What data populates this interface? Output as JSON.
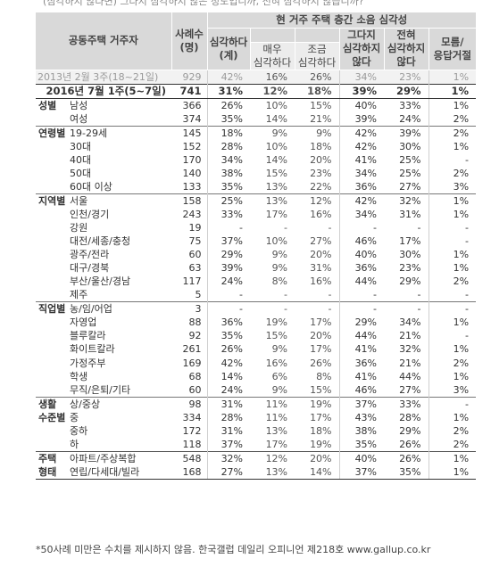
{
  "header_text": "(심각하지 않다면) 그다지 심각하지 않은 정도입니까, 전혀 심각하지 않습니까?",
  "table": {
    "head": {
      "title": "공동주택 거주자",
      "sample": "사례수\n(명)",
      "group": "현 거주 주택 층간 소음 심각성",
      "serious": "심각하다\n(계)",
      "very": "매우\n심각하다",
      "some": "조금\n심각하다",
      "not_much": "그다지\n심각하지\n않다",
      "not_at_all": "전혀\n심각하지\n않다",
      "dk": "모름/\n응답거절"
    },
    "rows": [
      {
        "g": "",
        "l": "2013년 2월 3주(18~21일)",
        "n": "929",
        "v": [
          "42%",
          "16%",
          "26%",
          "34%",
          "23%",
          "1%"
        ],
        "cls": "prev"
      },
      {
        "g": "",
        "l": "2016년 7월 1주(5~7일)",
        "n": "741",
        "v": [
          "31%",
          "12%",
          "18%",
          "39%",
          "29%",
          "1%"
        ],
        "cls": "cur"
      },
      {
        "g": "성별",
        "l": "남성",
        "n": "366",
        "v": [
          "26%",
          "10%",
          "15%",
          "40%",
          "33%",
          "1%"
        ],
        "cls": "gstart"
      },
      {
        "g": "",
        "l": "여성",
        "n": "374",
        "v": [
          "35%",
          "14%",
          "21%",
          "39%",
          "24%",
          "2%"
        ]
      },
      {
        "g": "연령별",
        "l": "19-29세",
        "n": "145",
        "v": [
          "18%",
          "9%",
          "9%",
          "42%",
          "39%",
          "2%"
        ],
        "cls": "gstart2"
      },
      {
        "g": "",
        "l": "30대",
        "n": "152",
        "v": [
          "28%",
          "10%",
          "18%",
          "42%",
          "30%",
          "1%"
        ]
      },
      {
        "g": "",
        "l": "40대",
        "n": "170",
        "v": [
          "34%",
          "14%",
          "20%",
          "41%",
          "25%",
          "-"
        ]
      },
      {
        "g": "",
        "l": "50대",
        "n": "140",
        "v": [
          "38%",
          "15%",
          "23%",
          "34%",
          "25%",
          "2%"
        ]
      },
      {
        "g": "",
        "l": "60대 이상",
        "n": "133",
        "v": [
          "35%",
          "13%",
          "22%",
          "36%",
          "27%",
          "3%"
        ]
      },
      {
        "g": "지역별",
        "l": "서울",
        "n": "158",
        "v": [
          "25%",
          "13%",
          "12%",
          "42%",
          "32%",
          "1%"
        ],
        "cls": "gstart2"
      },
      {
        "g": "",
        "l": "인천/경기",
        "n": "243",
        "v": [
          "33%",
          "17%",
          "16%",
          "34%",
          "31%",
          "1%"
        ]
      },
      {
        "g": "",
        "l": "강원",
        "n": "19",
        "v": [
          "-",
          "-",
          "-",
          "-",
          "-",
          "-"
        ]
      },
      {
        "g": "",
        "l": "대전/세종/충청",
        "n": "75",
        "v": [
          "37%",
          "10%",
          "27%",
          "46%",
          "17%",
          "-"
        ]
      },
      {
        "g": "",
        "l": "광주/전라",
        "n": "60",
        "v": [
          "29%",
          "9%",
          "20%",
          "40%",
          "30%",
          "1%"
        ]
      },
      {
        "g": "",
        "l": "대구/경북",
        "n": "63",
        "v": [
          "39%",
          "9%",
          "31%",
          "36%",
          "23%",
          "1%"
        ]
      },
      {
        "g": "",
        "l": "부산/울산/경남",
        "n": "117",
        "v": [
          "24%",
          "8%",
          "16%",
          "44%",
          "29%",
          "2%"
        ]
      },
      {
        "g": "",
        "l": "제주",
        "n": "5",
        "v": [
          "-",
          "-",
          "-",
          "-",
          "-",
          "-"
        ]
      },
      {
        "g": "직업별",
        "l": "농/임/어업",
        "n": "3",
        "v": [
          "-",
          "-",
          "-",
          "-",
          "-",
          "-"
        ],
        "cls": "gstart2"
      },
      {
        "g": "",
        "l": "자영업",
        "n": "88",
        "v": [
          "36%",
          "19%",
          "17%",
          "29%",
          "34%",
          "1%"
        ]
      },
      {
        "g": "",
        "l": "블루칼라",
        "n": "92",
        "v": [
          "35%",
          "15%",
          "20%",
          "44%",
          "21%",
          "-"
        ]
      },
      {
        "g": "",
        "l": "화이트칼라",
        "n": "261",
        "v": [
          "26%",
          "9%",
          "17%",
          "41%",
          "32%",
          "1%"
        ]
      },
      {
        "g": "",
        "l": "가정주부",
        "n": "169",
        "v": [
          "42%",
          "16%",
          "26%",
          "36%",
          "21%",
          "2%"
        ]
      },
      {
        "g": "",
        "l": "학생",
        "n": "68",
        "v": [
          "14%",
          "6%",
          "8%",
          "41%",
          "44%",
          "1%"
        ]
      },
      {
        "g": "",
        "l": "무직/은퇴/기타",
        "n": "60",
        "v": [
          "24%",
          "9%",
          "15%",
          "46%",
          "27%",
          "3%"
        ]
      },
      {
        "g": "생활",
        "l": "상/중상",
        "n": "98",
        "v": [
          "31%",
          "11%",
          "19%",
          "37%",
          "33%",
          "-"
        ],
        "cls": "gstart2"
      },
      {
        "g": "수준별",
        "l": "중",
        "n": "334",
        "v": [
          "28%",
          "11%",
          "17%",
          "43%",
          "28%",
          "1%"
        ]
      },
      {
        "g": "",
        "l": "중하",
        "n": "172",
        "v": [
          "31%",
          "13%",
          "18%",
          "38%",
          "29%",
          "2%"
        ]
      },
      {
        "g": "",
        "l": "하",
        "n": "118",
        "v": [
          "37%",
          "17%",
          "19%",
          "35%",
          "26%",
          "2%"
        ]
      },
      {
        "g": "주택",
        "l": "아파트/주상복합",
        "n": "548",
        "v": [
          "32%",
          "12%",
          "20%",
          "40%",
          "26%",
          "1%"
        ],
        "cls": "gstart"
      },
      {
        "g": "형태",
        "l": "연립/다세대/빌라",
        "n": "168",
        "v": [
          "27%",
          "13%",
          "14%",
          "37%",
          "35%",
          "1%"
        ],
        "cls": "lastrow"
      }
    ]
  },
  "footnote": "*50사례 미만은 수치를 제시하지 않음. 한국갤럽 데일리 오피니언 제218호 www.gallup.co.kr"
}
